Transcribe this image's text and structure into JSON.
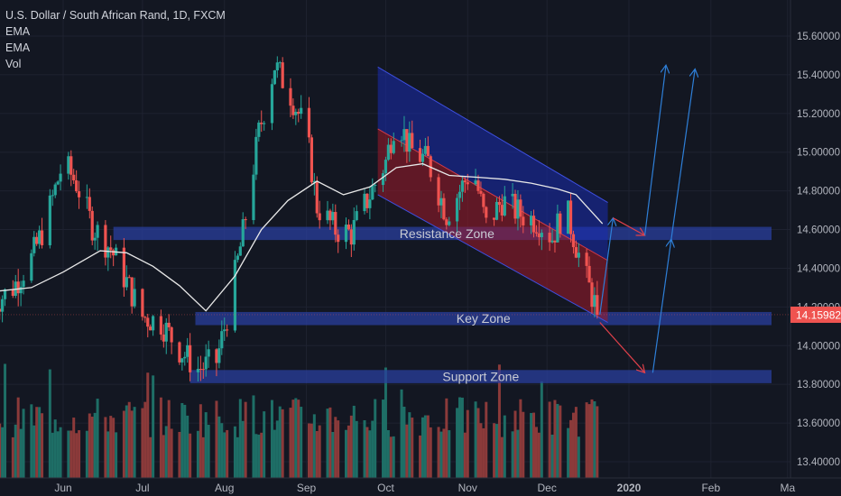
{
  "header": {
    "symbol_line": "U.S. Dollar / South African Rand, 1D, FXCM",
    "indicators": [
      "EMA",
      "EMA",
      "Vol"
    ]
  },
  "colors": {
    "background": "#131722",
    "up": "#26a69a",
    "down": "#ef5350",
    "volume_up": "#1e6e66",
    "volume_down": "#8b3a3a",
    "ema_line": "#e8e8e8",
    "zone_fill": "#2a3f9e",
    "channel_upper": "#1a2bb0",
    "channel_lower": "#a11a2a",
    "projection_blue": "#2e7fd8",
    "projection_red": "#e0404a",
    "price_tag": "#ef5350",
    "axis_text": "#b2b5be"
  },
  "chart_data": {
    "type": "candlestick",
    "symbol": "USD/ZAR",
    "timeframe": "1D",
    "y_axis": {
      "side": "right",
      "ylim": [
        13.32,
        15.72
      ],
      "ticks": [
        "15.60000",
        "15.40000",
        "15.20000",
        "15.00000",
        "14.80000",
        "14.60000",
        "14.40000",
        "14.20000",
        "14.00000",
        "13.80000",
        "13.60000",
        "13.40000"
      ],
      "tick_values": [
        15.6,
        15.4,
        15.2,
        15.0,
        14.8,
        14.6,
        14.4,
        14.2,
        14.0,
        13.8,
        13.6,
        13.4
      ]
    },
    "x_axis": {
      "labels": [
        "Jun",
        "Jul",
        "Aug",
        "Sep",
        "Oct",
        "Nov",
        "Dec",
        "2020",
        "Feb",
        "Ma"
      ],
      "label_dates": [
        "2019-06-01",
        "2019-07-01",
        "2019-08-01",
        "2019-09-01",
        "2019-10-01",
        "2019-11-01",
        "2019-12-01",
        "2020-01-01",
        "2020-02-01",
        "2020-03-01"
      ],
      "range": [
        "2019-05-06",
        "2020-03-05"
      ]
    },
    "last_price": "14.15982",
    "last_price_value": 14.15982,
    "price_path": {
      "dates": [
        "2019-05-06",
        "2019-05-13",
        "2019-05-20",
        "2019-05-25",
        "2019-06-01",
        "2019-06-06",
        "2019-06-12",
        "2019-06-19",
        "2019-06-26",
        "2019-07-01",
        "2019-07-08",
        "2019-07-15",
        "2019-07-22",
        "2019-07-29",
        "2019-08-02",
        "2019-08-08",
        "2019-08-14",
        "2019-08-20",
        "2019-08-26",
        "2019-09-01",
        "2019-09-05",
        "2019-09-12",
        "2019-09-18",
        "2019-09-25",
        "2019-10-01",
        "2019-10-05",
        "2019-10-10",
        "2019-10-17",
        "2019-10-24",
        "2019-10-31",
        "2019-11-03",
        "2019-11-08",
        "2019-11-14",
        "2019-11-21",
        "2019-11-28",
        "2019-12-03",
        "2019-12-08",
        "2019-12-14",
        "2019-12-19",
        "2019-12-22"
      ],
      "prices": [
        14.22,
        14.3,
        14.45,
        14.62,
        14.95,
        14.84,
        14.62,
        14.5,
        14.3,
        14.15,
        14.12,
        13.98,
        13.88,
        13.92,
        14.15,
        14.58,
        15.1,
        15.45,
        15.3,
        15.1,
        14.72,
        14.6,
        14.58,
        14.78,
        14.95,
        15.2,
        15.02,
        14.95,
        14.68,
        14.85,
        14.92,
        14.62,
        14.75,
        14.68,
        14.64,
        14.56,
        14.72,
        14.42,
        14.22,
        14.15
      ]
    },
    "ema_path": {
      "dates": [
        "2019-05-06",
        "2019-05-20",
        "2019-06-01",
        "2019-06-15",
        "2019-06-25",
        "2019-07-05",
        "2019-07-15",
        "2019-07-25",
        "2019-08-05",
        "2019-08-15",
        "2019-08-25",
        "2019-09-05",
        "2019-09-15",
        "2019-09-25",
        "2019-10-05",
        "2019-10-15",
        "2019-10-25",
        "2019-11-05",
        "2019-11-15",
        "2019-11-25",
        "2019-12-05",
        "2019-12-12",
        "2019-12-22"
      ],
      "values": [
        14.28,
        14.3,
        14.38,
        14.49,
        14.48,
        14.41,
        14.31,
        14.18,
        14.36,
        14.6,
        14.75,
        14.85,
        14.78,
        14.82,
        14.92,
        14.94,
        14.88,
        14.87,
        14.86,
        14.84,
        14.81,
        14.78,
        14.63
      ]
    },
    "zones": [
      {
        "label": "Resistance Zone",
        "low": 14.56,
        "high": 14.6,
        "start": "2019-06-20",
        "end": "2020-03-01"
      },
      {
        "label": "Key Zone",
        "low": 14.12,
        "high": 14.16,
        "start": "2019-07-21",
        "end": "2020-03-01"
      },
      {
        "label": "Support Zone",
        "low": 13.82,
        "high": 13.86,
        "start": "2019-07-19",
        "end": "2020-03-01"
      }
    ],
    "channel": {
      "start": "2019-09-28",
      "end": "2019-12-24",
      "upper_start": 15.44,
      "mid_start": 15.12,
      "lower_start": 14.78,
      "upper_end": 14.74,
      "mid_end": 14.44,
      "lower_end": 14.12
    },
    "projections": [
      {
        "color": "blue",
        "points": [
          [
            "2019-12-21",
            14.16
          ],
          [
            "2019-12-26",
            14.66
          ]
        ]
      },
      {
        "color": "red",
        "points": [
          [
            "2019-12-26",
            14.66
          ],
          [
            "2020-01-07",
            14.57
          ]
        ]
      },
      {
        "color": "blue",
        "points": [
          [
            "2020-01-07",
            14.57
          ],
          [
            "2020-01-15",
            15.45
          ]
        ]
      },
      {
        "color": "red",
        "points": [
          [
            "2019-12-21",
            14.12
          ],
          [
            "2020-01-07",
            13.86
          ]
        ]
      },
      {
        "color": "blue",
        "points": [
          [
            "2020-01-10",
            13.86
          ],
          [
            "2020-01-17",
            14.55
          ]
        ]
      },
      {
        "color": "blue",
        "points": [
          [
            "2020-01-17",
            14.55
          ],
          [
            "2020-01-26",
            15.43
          ]
        ]
      }
    ]
  }
}
